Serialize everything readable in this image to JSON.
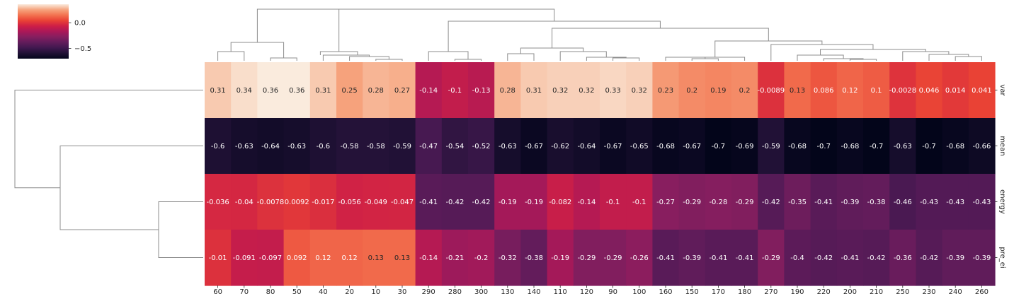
{
  "chart_data": {
    "type": "heatmap",
    "title": "",
    "xlabel": "",
    "ylabel": "",
    "columns": [
      "60",
      "70",
      "80",
      "50",
      "40",
      "20",
      "10",
      "30",
      "290",
      "280",
      "300",
      "130",
      "140",
      "110",
      "120",
      "90",
      "100",
      "160",
      "150",
      "170",
      "180",
      "270",
      "190",
      "220",
      "200",
      "210",
      "250",
      "230",
      "240",
      "260"
    ],
    "rows": [
      "var",
      "mean",
      "energy",
      "pre_ei"
    ],
    "values": [
      [
        0.31,
        0.34,
        0.36,
        0.36,
        0.31,
        0.25,
        0.28,
        0.27,
        -0.14,
        -0.1,
        -0.13,
        0.28,
        0.31,
        0.32,
        0.32,
        0.33,
        0.32,
        0.23,
        0.2,
        0.19,
        0.2,
        -0.0089,
        0.13,
        0.086,
        0.12,
        0.1,
        -0.0028,
        0.046,
        0.014,
        0.041
      ],
      [
        -0.6,
        -0.63,
        -0.64,
        -0.63,
        -0.6,
        -0.58,
        -0.58,
        -0.59,
        -0.47,
        -0.54,
        -0.52,
        -0.63,
        -0.67,
        -0.62,
        -0.64,
        -0.67,
        -0.65,
        -0.68,
        -0.67,
        -0.7,
        -0.69,
        -0.59,
        -0.68,
        -0.7,
        -0.68,
        -0.7,
        -0.63,
        -0.7,
        -0.68,
        -0.66
      ],
      [
        -0.036,
        -0.04,
        -0.0078,
        0.0092,
        -0.017,
        -0.056,
        -0.049,
        -0.047,
        -0.41,
        -0.42,
        -0.42,
        -0.19,
        -0.19,
        -0.082,
        -0.14,
        -0.1,
        -0.1,
        -0.27,
        -0.29,
        -0.28,
        -0.29,
        -0.42,
        -0.35,
        -0.41,
        -0.39,
        -0.38,
        -0.46,
        -0.43,
        -0.43,
        -0.43
      ],
      [
        -0.01,
        -0.091,
        -0.097,
        0.092,
        0.12,
        0.12,
        0.13,
        0.13,
        -0.14,
        -0.21,
        -0.2,
        -0.32,
        -0.38,
        -0.19,
        -0.29,
        -0.29,
        -0.26,
        -0.41,
        -0.39,
        -0.41,
        -0.41,
        -0.29,
        -0.4,
        -0.42,
        -0.41,
        -0.42,
        -0.36,
        -0.42,
        -0.39,
        -0.39
      ]
    ],
    "labels": [
      [
        "0.31",
        "0.34",
        "0.36",
        "0.36",
        "0.31",
        "0.25",
        "0.28",
        "0.27",
        "-0.14",
        "-0.1",
        "-0.13",
        "0.28",
        "0.31",
        "0.32",
        "0.32",
        "0.33",
        "0.32",
        "0.23",
        "0.2",
        "0.19",
        "0.2",
        "-0.0089",
        "0.13",
        "0.086",
        "0.12",
        "0.1",
        "-0.0028",
        "0.046",
        "0.014",
        "0.041"
      ],
      [
        "-0.6",
        "-0.63",
        "-0.64",
        "-0.63",
        "-0.6",
        "-0.58",
        "-0.58",
        "-0.59",
        "-0.47",
        "-0.54",
        "-0.52",
        "-0.63",
        "-0.67",
        "-0.62",
        "-0.64",
        "-0.67",
        "-0.65",
        "-0.68",
        "-0.67",
        "-0.7",
        "-0.69",
        "-0.59",
        "-0.68",
        "-0.7",
        "-0.68",
        "-0.7",
        "-0.63",
        "-0.7",
        "-0.68",
        "-0.66"
      ],
      [
        "-0.036",
        "-0.04",
        "-0.0078",
        "0.0092",
        "-0.017",
        "-0.056",
        "-0.049",
        "-0.047",
        "-0.41",
        "-0.42",
        "-0.42",
        "-0.19",
        "-0.19",
        "-0.082",
        "-0.14",
        "-0.1",
        "-0.1",
        "-0.27",
        "-0.29",
        "-0.28",
        "-0.29",
        "-0.42",
        "-0.35",
        "-0.41",
        "-0.39",
        "-0.38",
        "-0.46",
        "-0.43",
        "-0.43",
        "-0.43"
      ],
      [
        "-0.01",
        "-0.091",
        "-0.097",
        "0.092",
        "0.12",
        "0.12",
        "0.13",
        "0.13",
        "-0.14",
        "-0.21",
        "-0.2",
        "-0.32",
        "-0.38",
        "-0.19",
        "-0.29",
        "-0.29",
        "-0.26",
        "-0.41",
        "-0.39",
        "-0.41",
        "-0.41",
        "-0.29",
        "-0.4",
        "-0.42",
        "-0.41",
        "-0.42",
        "-0.36",
        "-0.42",
        "-0.39",
        "-0.39"
      ]
    ],
    "colormap": "rocket",
    "vmin": -0.7,
    "vmax": 0.36,
    "colorbar": {
      "placement": "top-left",
      "ticks": [
        0.0,
        -0.5
      ],
      "tick_labels": [
        "0.0",
        "−0.5"
      ]
    },
    "dendrograms": {
      "column": "top",
      "row": "left"
    },
    "grid": false
  }
}
